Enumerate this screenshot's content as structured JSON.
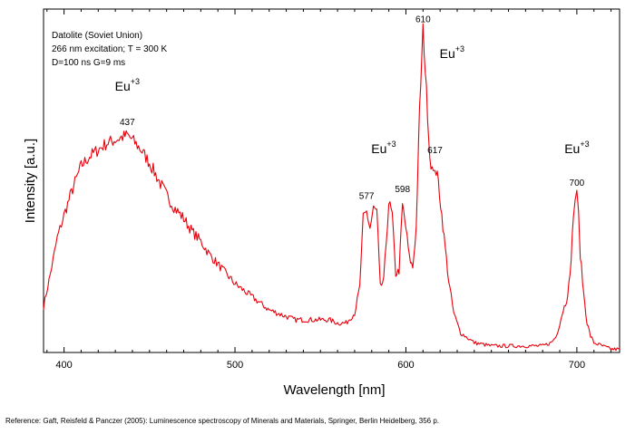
{
  "chart_data": {
    "type": "line",
    "info_lines": [
      "Datolite (Soviet Union)",
      "266 nm excitation; T = 300 K",
      "D=100 ns G=9 ms"
    ],
    "xlabel": "Wavelength [nm]",
    "ylabel": "Intensity [a.u.]",
    "xlim": [
      388,
      725
    ],
    "ylim": [
      0,
      1.05
    ],
    "x_ticks": [
      400,
      500,
      600,
      700
    ],
    "y_ticks_shown": false,
    "grid": false,
    "line_color": "#e8000b",
    "series": [
      {
        "x": [
          388,
          392,
          396,
          400,
          405,
          410,
          415,
          420,
          425,
          430,
          435,
          437,
          440,
          445,
          450,
          455,
          460,
          465,
          470,
          475,
          480,
          485,
          490,
          495,
          500,
          505,
          510,
          515,
          520,
          525,
          530,
          535,
          540,
          545,
          550,
          555,
          560,
          565,
          570,
          573,
          575,
          577,
          579,
          581,
          583,
          585,
          587,
          590,
          592,
          594,
          596,
          598,
          600,
          602,
          604,
          606,
          608,
          610,
          612,
          614,
          616,
          617,
          619,
          621,
          623,
          625,
          628,
          632,
          640,
          650,
          660,
          670,
          680,
          685,
          688,
          690,
          692,
          694,
          696,
          698,
          699,
          700,
          701,
          702,
          704,
          706,
          708,
          710,
          715,
          720,
          725
        ],
        "y": [
          0.14,
          0.24,
          0.35,
          0.42,
          0.5,
          0.57,
          0.6,
          0.62,
          0.64,
          0.65,
          0.66,
          0.665,
          0.65,
          0.62,
          0.58,
          0.53,
          0.48,
          0.44,
          0.41,
          0.37,
          0.34,
          0.3,
          0.27,
          0.24,
          0.21,
          0.19,
          0.17,
          0.15,
          0.13,
          0.12,
          0.11,
          0.1,
          0.1,
          0.1,
          0.1,
          0.1,
          0.09,
          0.09,
          0.12,
          0.2,
          0.41,
          0.43,
          0.38,
          0.44,
          0.43,
          0.2,
          0.22,
          0.46,
          0.42,
          0.24,
          0.25,
          0.45,
          0.38,
          0.29,
          0.26,
          0.38,
          0.74,
          0.99,
          0.8,
          0.6,
          0.54,
          0.57,
          0.52,
          0.42,
          0.32,
          0.22,
          0.12,
          0.06,
          0.03,
          0.02,
          0.02,
          0.02,
          0.02,
          0.03,
          0.05,
          0.09,
          0.13,
          0.16,
          0.23,
          0.42,
          0.47,
          0.48,
          0.42,
          0.3,
          0.18,
          0.09,
          0.05,
          0.03,
          0.02,
          0.01,
          0.01
        ]
      }
    ],
    "annotations": [
      {
        "ion": "Eu",
        "charge": "+3",
        "x": 437,
        "y": 0.8
      },
      {
        "ion": "Eu",
        "charge": "+3",
        "x": 587,
        "y": 0.61
      },
      {
        "ion": "Eu",
        "charge": "+3",
        "x": 627,
        "y": 0.9
      },
      {
        "ion": "Eu",
        "charge": "+3",
        "x": 700,
        "y": 0.61
      }
    ],
    "peak_labels": [
      {
        "text": "437",
        "x": 437,
        "y": 0.695
      },
      {
        "text": "577",
        "x": 577,
        "y": 0.47
      },
      {
        "text": "598",
        "x": 598,
        "y": 0.49
      },
      {
        "text": "610",
        "x": 610,
        "y": 1.01
      },
      {
        "text": "617",
        "x": 617,
        "y": 0.61
      },
      {
        "text": "700",
        "x": 700,
        "y": 0.51
      }
    ]
  },
  "footer": {
    "reference": "Reference: Gaft, Reisfeld & Panczer (2005): Luminescence spectroscopy of Minerals and Materials, Springer, Berlin Heidelberg, 356 p."
  }
}
